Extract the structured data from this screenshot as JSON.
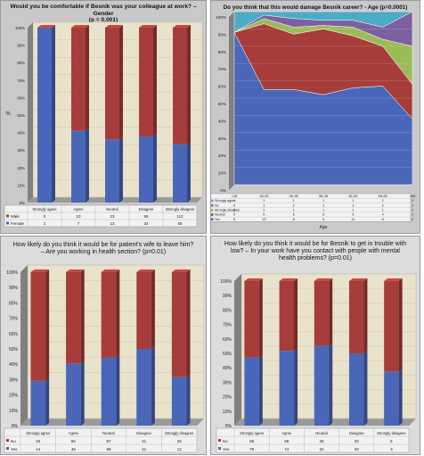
{
  "colors": {
    "red": "#a63d3a",
    "blue": "#4a66b8",
    "green": "#9bbb59",
    "purple": "#7d60a0",
    "cyan": "#4bacc6",
    "wall": "#e9e2cc",
    "floor": "#808080"
  },
  "chart_data": [
    {
      "type": "bar",
      "stacked": true,
      "percent": true,
      "title": "Would you be comfortable if Besnik was your colleague at work? – Gender\n(p = 0.001)",
      "ylabel": "%",
      "ytick_labels": [
        "0%",
        "10%",
        "20%",
        "30%",
        "40%",
        "50%",
        "60%",
        "70%",
        "80%",
        "90%",
        "100%"
      ],
      "categories": [
        "Strongly agree",
        "Agree",
        "Neutral",
        "Disagree",
        "Strongly disagree"
      ],
      "series": [
        {
          "name": "Female",
          "values": [
            1,
            7,
            13,
            34,
            56
          ]
        },
        {
          "name": "Male",
          "values": [
            0,
            10,
            23,
            56,
            112
          ]
        }
      ],
      "table": {
        "rows": [
          {
            "label": "Male",
            "values": [
              "0",
              "10",
              "23",
              "56",
              "112"
            ]
          },
          {
            "label": "Female",
            "values": [
              "1",
              "7",
              "13",
              "34",
              "56"
            ]
          }
        ]
      }
    },
    {
      "type": "area",
      "stacked": true,
      "percent": true,
      "title": "Do you think that this would damage Besnik career? - Age (p=0.0001)",
      "xlabel": "Age",
      "ytick_labels": [
        "0%",
        "10%",
        "20%",
        "30%",
        "40%",
        "50%",
        "60%",
        "70%",
        "80%",
        "90%",
        "100%"
      ],
      "categories": [
        "<18",
        "18-25",
        "26-35",
        "36-45",
        "46-55",
        "56-65",
        ">65"
      ],
      "series": [
        {
          "name": "Yes",
          "values": [
            88,
            55,
            55,
            52,
            56,
            57,
            38
          ]
        },
        {
          "name": "Neutral",
          "values": [
            0,
            38,
            32,
            38,
            30,
            23,
            20
          ]
        },
        {
          "name": "Strongly disagree",
          "values": [
            0,
            3,
            4,
            2,
            5,
            4,
            22
          ]
        },
        {
          "name": "No",
          "values": [
            0,
            2,
            5,
            3,
            4,
            7,
            20
          ]
        },
        {
          "name": "Strongly agree",
          "values": [
            12,
            2,
            4,
            5,
            5,
            9,
            0
          ]
        }
      ],
      "table": {
        "rows": [
          {
            "label": "Strongly agree",
            "values": [
              "1",
              "1",
              "1",
              "1",
              "1",
              "2",
              "0"
            ]
          },
          {
            "label": "No",
            "values": [
              "0",
              "1",
              "2",
              "1",
              "1",
              "2",
              "1"
            ]
          },
          {
            "label": "Strongly disagree",
            "values": [
              "0",
              "1",
              "1",
              "1",
              "1",
              "1",
              "1"
            ]
          },
          {
            "label": "Neutral",
            "values": [
              "0",
              "5",
              "6",
              "6",
              "5",
              "4",
              "1"
            ]
          },
          {
            "label": "Yes",
            "values": [
              "5",
              "13",
              "8",
              "9",
              "11",
              "8",
              "2"
            ]
          }
        ]
      }
    },
    {
      "type": "bar",
      "stacked": true,
      "percent": true,
      "title": "How likely do you think it would be for patient's wife to leave him?\n– Are you working in health section? (p=0.01)",
      "ytick_labels": [
        "0%",
        "10%",
        "20%",
        "30%",
        "40%",
        "50%",
        "60%",
        "70%",
        "80%",
        "90%",
        "100%"
      ],
      "categories": [
        "Strongly agree",
        "Agree",
        "Neutral",
        "Disagree",
        "Strongly disagree"
      ],
      "series": [
        {
          "name": "Yes",
          "values": [
            14,
            45,
            69,
            41,
            12
          ]
        },
        {
          "name": "No",
          "values": [
            34,
            66,
            87,
            41,
            26
          ]
        }
      ],
      "table": {
        "rows": [
          {
            "label": "No",
            "values": [
              "34",
              "66",
              "87",
              "41",
              "26"
            ]
          },
          {
            "label": "Yes",
            "values": [
              "14",
              "45",
              "69",
              "41",
              "12"
            ]
          }
        ]
      }
    },
    {
      "type": "bar",
      "stacked": true,
      "percent": true,
      "title": "How likely do you think it would be for Besnik to get in trouble with\nlow? – In your work have you contact with people with mental\nhealth problems? (p=0.01)",
      "ytick_labels": [
        "0%",
        "10%",
        "20%",
        "30%",
        "40%",
        "50%",
        "60%",
        "70%",
        "80%",
        "90%",
        "100%"
      ],
      "categories": [
        "Strongly agree",
        "Agree",
        "Neutral",
        "Disagree",
        "Strongly disagree"
      ],
      "series": [
        {
          "name": "Yes",
          "values": [
            79,
            74,
            32,
            20,
            3
          ]
        },
        {
          "name": "No",
          "values": [
            89,
            69,
            26,
            20,
            5
          ]
        }
      ],
      "table": {
        "rows": [
          {
            "label": "No",
            "values": [
              "89",
              "69",
              "26",
              "20",
              "5"
            ]
          },
          {
            "label": "Yes",
            "values": [
              "79",
              "74",
              "32",
              "20",
              "3"
            ]
          }
        ]
      }
    }
  ]
}
